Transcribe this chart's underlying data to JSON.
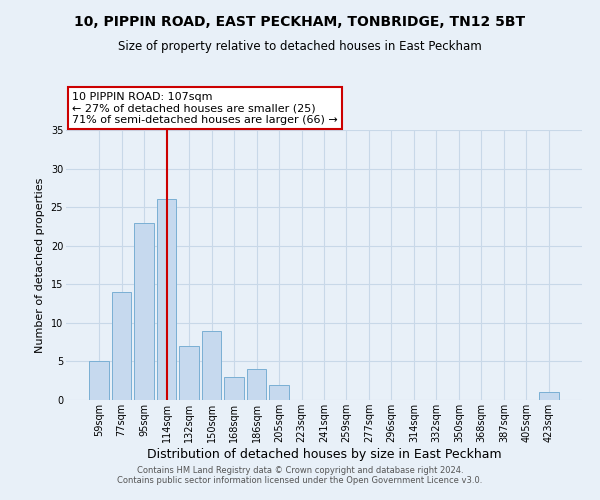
{
  "title": "10, PIPPIN ROAD, EAST PECKHAM, TONBRIDGE, TN12 5BT",
  "subtitle": "Size of property relative to detached houses in East Peckham",
  "xlabel": "Distribution of detached houses by size in East Peckham",
  "ylabel": "Number of detached properties",
  "bar_labels": [
    "59sqm",
    "77sqm",
    "95sqm",
    "114sqm",
    "132sqm",
    "150sqm",
    "168sqm",
    "186sqm",
    "205sqm",
    "223sqm",
    "241sqm",
    "259sqm",
    "277sqm",
    "296sqm",
    "314sqm",
    "332sqm",
    "350sqm",
    "368sqm",
    "387sqm",
    "405sqm",
    "423sqm"
  ],
  "bar_values": [
    5,
    14,
    23,
    26,
    7,
    9,
    3,
    4,
    2,
    0,
    0,
    0,
    0,
    0,
    0,
    0,
    0,
    0,
    0,
    0,
    1
  ],
  "bar_color": "#c6d9ee",
  "bar_edge_color": "#7aafd4",
  "grid_color": "#c8d8e8",
  "background_color": "#e8f0f8",
  "vline_color": "#cc0000",
  "vline_pos": 3.0,
  "annotation_title": "10 PIPPIN ROAD: 107sqm",
  "annotation_line1": "← 27% of detached houses are smaller (25)",
  "annotation_line2": "71% of semi-detached houses are larger (66) →",
  "annotation_box_facecolor": "#ffffff",
  "annotation_box_edgecolor": "#cc0000",
  "ylim": [
    0,
    35
  ],
  "yticks": [
    0,
    5,
    10,
    15,
    20,
    25,
    30,
    35
  ],
  "title_fontsize": 10,
  "subtitle_fontsize": 8.5,
  "xlabel_fontsize": 9,
  "ylabel_fontsize": 8,
  "tick_fontsize": 7,
  "footer1": "Contains HM Land Registry data © Crown copyright and database right 2024.",
  "footer2": "Contains public sector information licensed under the Open Government Licence v3.0."
}
